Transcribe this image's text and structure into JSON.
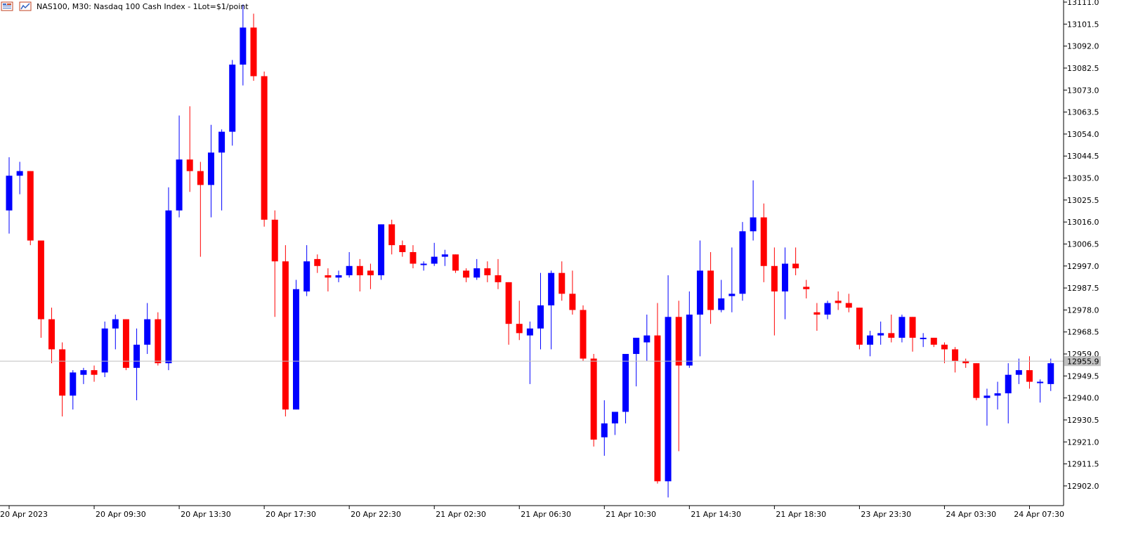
{
  "header": {
    "symbol_title": "NAS100, M30:  Nasdaq 100 Cash Index - 1Lot=$1/point",
    "icons": [
      "tile-windows-icon",
      "chart-properties-icon"
    ]
  },
  "colors": {
    "bull": "#0000ff",
    "bear": "#ff0000",
    "background": "#ffffff",
    "axis": "#000000",
    "price_line": "#c0c0c0",
    "price_label_bg": "#c0c0c0",
    "price_label_text": "#ffffff"
  },
  "chart_data": {
    "type": "candlestick",
    "title": "NAS100, M30:  Nasdaq 100 Cash Index - 1Lot=$1/point",
    "ylim": [
      12895.0,
      13111.0
    ],
    "y_ticks": [
      "13111.0",
      "13101.5",
      "13092.0",
      "13082.5",
      "13073.0",
      "13063.5",
      "13054.0",
      "13044.5",
      "13035.0",
      "13025.5",
      "13016.0",
      "13006.5",
      "12997.0",
      "12987.5",
      "12978.0",
      "12968.5",
      "12959.0",
      "12949.5",
      "12940.0",
      "12930.5",
      "12921.0",
      "12911.5",
      "12902.0"
    ],
    "x_ticks": [
      "20 Apr 2023",
      "20 Apr 09:30",
      "20 Apr 13:30",
      "20 Apr 17:30",
      "20 Apr 22:30",
      "21 Apr 02:30",
      "21 Apr 06:30",
      "21 Apr 10:30",
      "21 Apr 14:30",
      "21 Apr 18:30",
      "23 Apr 23:30",
      "24 Apr 03:30",
      "24 Apr 07:30"
    ],
    "current_price": "12955.9",
    "candles": [
      {
        "o": 13021,
        "h": 13044,
        "l": 13011,
        "c": 13036
      },
      {
        "o": 13036,
        "h": 13042,
        "l": 13028,
        "c": 13038
      },
      {
        "o": 13038,
        "h": 13038,
        "l": 13006,
        "c": 13008
      },
      {
        "o": 13008,
        "h": 13008,
        "l": 12966,
        "c": 12974
      },
      {
        "o": 12974,
        "h": 12979,
        "l": 12955,
        "c": 12961
      },
      {
        "o": 12961,
        "h": 12964,
        "l": 12932,
        "c": 12941
      },
      {
        "o": 12941,
        "h": 12952,
        "l": 12935,
        "c": 12951
      },
      {
        "o": 12950,
        "h": 12953,
        "l": 12946,
        "c": 12952
      },
      {
        "o": 12952,
        "h": 12954,
        "l": 12947,
        "c": 12950
      },
      {
        "o": 12951,
        "h": 12973,
        "l": 12949,
        "c": 12970
      },
      {
        "o": 12970,
        "h": 12976,
        "l": 12961,
        "c": 12974
      },
      {
        "o": 12974,
        "h": 12974,
        "l": 12952,
        "c": 12953
      },
      {
        "o": 12953,
        "h": 12970,
        "l": 12939,
        "c": 12963
      },
      {
        "o": 12963,
        "h": 12981,
        "l": 12959,
        "c": 12974
      },
      {
        "o": 12974,
        "h": 12977,
        "l": 12954,
        "c": 12955
      },
      {
        "o": 12955,
        "h": 13031,
        "l": 12952,
        "c": 13021
      },
      {
        "o": 13021,
        "h": 13062,
        "l": 13018,
        "c": 13043
      },
      {
        "o": 13043,
        "h": 13066,
        "l": 13029,
        "c": 13038
      },
      {
        "o": 13038,
        "h": 13042,
        "l": 13001,
        "c": 13032
      },
      {
        "o": 13032,
        "h": 13058,
        "l": 13018,
        "c": 13046
      },
      {
        "o": 13046,
        "h": 13056,
        "l": 13021,
        "c": 13055
      },
      {
        "o": 13055,
        "h": 13086,
        "l": 13049,
        "c": 13084
      },
      {
        "o": 13084,
        "h": 13110,
        "l": 13075,
        "c": 13100
      },
      {
        "o": 13100,
        "h": 13106,
        "l": 13077,
        "c": 13079
      },
      {
        "o": 13079,
        "h": 13081,
        "l": 13014,
        "c": 13017
      },
      {
        "o": 13017,
        "h": 13021,
        "l": 12975,
        "c": 12999
      },
      {
        "o": 12999,
        "h": 13006,
        "l": 12932,
        "c": 12935
      },
      {
        "o": 12935,
        "h": 12991,
        "l": 12935,
        "c": 12987
      },
      {
        "o": 12986,
        "h": 13006,
        "l": 12984,
        "c": 12999
      },
      {
        "o": 13000,
        "h": 13002,
        "l": 12994,
        "c": 12997
      },
      {
        "o": 12993,
        "h": 12996,
        "l": 12986,
        "c": 12992
      },
      {
        "o": 12992,
        "h": 12995,
        "l": 12990,
        "c": 12993
      },
      {
        "o": 12993,
        "h": 13003,
        "l": 12992,
        "c": 12997
      },
      {
        "o": 12997,
        "h": 13000,
        "l": 12986,
        "c": 12993
      },
      {
        "o": 12995,
        "h": 12998,
        "l": 12987,
        "c": 12993
      },
      {
        "o": 12993,
        "h": 13015,
        "l": 12991,
        "c": 13015
      },
      {
        "o": 13015,
        "h": 13017,
        "l": 13002,
        "c": 13006
      },
      {
        "o": 13006,
        "h": 13008,
        "l": 13001,
        "c": 13003
      },
      {
        "o": 13003,
        "h": 13006,
        "l": 12996,
        "c": 12998
      },
      {
        "o": 12998,
        "h": 12999,
        "l": 12995,
        "c": 12998
      },
      {
        "o": 12998,
        "h": 13007,
        "l": 12997,
        "c": 13001
      },
      {
        "o": 13001,
        "h": 13004,
        "l": 12997,
        "c": 13002
      },
      {
        "o": 13002,
        "h": 13002,
        "l": 12994,
        "c": 12995
      },
      {
        "o": 12995,
        "h": 12996,
        "l": 12990,
        "c": 12992
      },
      {
        "o": 12992,
        "h": 13000,
        "l": 12991,
        "c": 12996
      },
      {
        "o": 12996,
        "h": 12999,
        "l": 12990,
        "c": 12993
      },
      {
        "o": 12993,
        "h": 13000,
        "l": 12987,
        "c": 12990
      },
      {
        "o": 12990,
        "h": 12990,
        "l": 12963,
        "c": 12972
      },
      {
        "o": 12972,
        "h": 12982,
        "l": 12965,
        "c": 12968
      },
      {
        "o": 12967,
        "h": 12973,
        "l": 12946,
        "c": 12970
      },
      {
        "o": 12970,
        "h": 12994,
        "l": 12961,
        "c": 12980
      },
      {
        "o": 12980,
        "h": 12995,
        "l": 12961,
        "c": 12994
      },
      {
        "o": 12994,
        "h": 12999,
        "l": 12982,
        "c": 12985
      },
      {
        "o": 12985,
        "h": 12995,
        "l": 12976,
        "c": 12978
      },
      {
        "o": 12978,
        "h": 12980,
        "l": 12956,
        "c": 12957
      },
      {
        "o": 12957,
        "h": 12959,
        "l": 12919,
        "c": 12922
      },
      {
        "o": 12923,
        "h": 12939,
        "l": 12915,
        "c": 12929
      },
      {
        "o": 12929,
        "h": 12932,
        "l": 12924,
        "c": 12934
      },
      {
        "o": 12934,
        "h": 12957,
        "l": 12929,
        "c": 12959
      },
      {
        "o": 12959,
        "h": 12965,
        "l": 12945,
        "c": 12966
      },
      {
        "o": 12964,
        "h": 12976,
        "l": 12956,
        "c": 12967
      },
      {
        "o": 12967,
        "h": 12981,
        "l": 12903,
        "c": 12904
      },
      {
        "o": 12904,
        "h": 12993,
        "l": 12897,
        "c": 12975
      },
      {
        "o": 12975,
        "h": 12982,
        "l": 12917,
        "c": 12954
      },
      {
        "o": 12954,
        "h": 12986,
        "l": 12953,
        "c": 12976
      },
      {
        "o": 12976,
        "h": 13008,
        "l": 12958,
        "c": 12995
      },
      {
        "o": 12995,
        "h": 13003,
        "l": 12972,
        "c": 12978
      },
      {
        "o": 12978,
        "h": 12991,
        "l": 12977,
        "c": 12983
      },
      {
        "o": 12984,
        "h": 13005,
        "l": 12977,
        "c": 12985
      },
      {
        "o": 12985,
        "h": 13016,
        "l": 12982,
        "c": 13012
      },
      {
        "o": 13012,
        "h": 13034,
        "l": 13008,
        "c": 13018
      },
      {
        "o": 13018,
        "h": 13024,
        "l": 12990,
        "c": 12997
      },
      {
        "o": 12997,
        "h": 13005,
        "l": 12967,
        "c": 12986
      },
      {
        "o": 12986,
        "h": 13005,
        "l": 12974,
        "c": 12998
      },
      {
        "o": 12998,
        "h": 13005,
        "l": 12993,
        "c": 12996
      },
      {
        "o": 12988,
        "h": 12991,
        "l": 12983,
        "c": 12987
      },
      {
        "o": 12977,
        "h": 12981,
        "l": 12969,
        "c": 12976
      },
      {
        "o": 12976,
        "h": 12982,
        "l": 12974,
        "c": 12981
      },
      {
        "o": 12982,
        "h": 12986,
        "l": 12978,
        "c": 12981
      },
      {
        "o": 12981,
        "h": 12985,
        "l": 12977,
        "c": 12979
      },
      {
        "o": 12979,
        "h": 12979,
        "l": 12961,
        "c": 12963
      },
      {
        "o": 12963,
        "h": 12969,
        "l": 12958,
        "c": 12967
      },
      {
        "o": 12967,
        "h": 12973,
        "l": 12963,
        "c": 12968
      },
      {
        "o": 12968,
        "h": 12976,
        "l": 12964,
        "c": 12966
      },
      {
        "o": 12966,
        "h": 12976,
        "l": 12964,
        "c": 12975
      },
      {
        "o": 12975,
        "h": 12975,
        "l": 12960,
        "c": 12966
      },
      {
        "o": 12966,
        "h": 12968,
        "l": 12962,
        "c": 12966
      },
      {
        "o": 12966,
        "h": 12966,
        "l": 12962,
        "c": 12963
      },
      {
        "o": 12963,
        "h": 12964,
        "l": 12955,
        "c": 12961
      },
      {
        "o": 12961,
        "h": 12962,
        "l": 12951,
        "c": 12956
      },
      {
        "o": 12956,
        "h": 12957,
        "l": 12953,
        "c": 12955
      },
      {
        "o": 12955,
        "h": 12955,
        "l": 12939,
        "c": 12940
      },
      {
        "o": 12940,
        "h": 12944,
        "l": 12928,
        "c": 12941
      },
      {
        "o": 12941,
        "h": 12947,
        "l": 12935,
        "c": 12942
      },
      {
        "o": 12942,
        "h": 12955,
        "l": 12929,
        "c": 12950
      },
      {
        "o": 12950,
        "h": 12957,
        "l": 12946,
        "c": 12952
      },
      {
        "o": 12952,
        "h": 12958,
        "l": 12944,
        "c": 12947
      },
      {
        "o": 12947,
        "h": 12948,
        "l": 12938,
        "c": 12947
      },
      {
        "o": 12946,
        "h": 12957,
        "l": 12943,
        "c": 12955
      }
    ]
  }
}
